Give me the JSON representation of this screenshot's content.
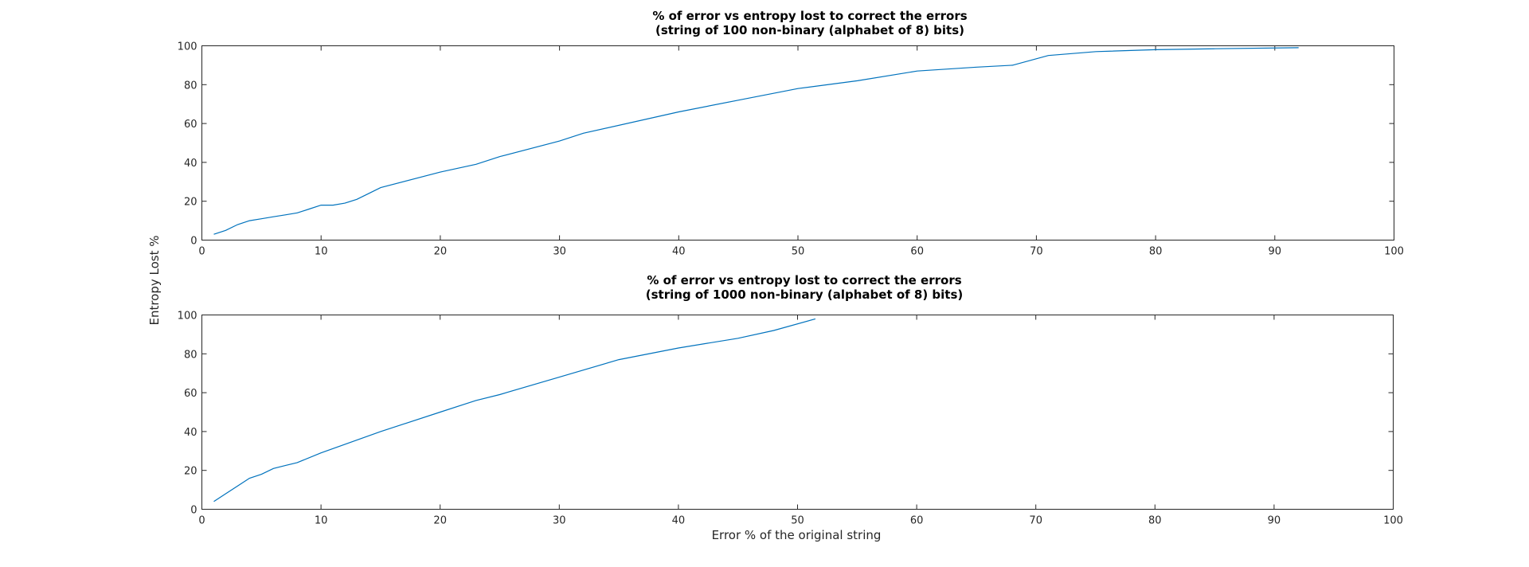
{
  "chart_data": [
    {
      "type": "line",
      "title_line1": "% of error vs entropy lost to correct the errors",
      "title_line2": "(string of 100 non-binary (alphabet of 8) bits)",
      "xlabel": "",
      "ylabel": "Entropy Lost %",
      "xlim": [
        0,
        100
      ],
      "ylim": [
        0,
        100
      ],
      "xticks": [
        0,
        10,
        20,
        30,
        40,
        50,
        60,
        70,
        80,
        90,
        100
      ],
      "yticks": [
        0,
        20,
        40,
        60,
        80,
        100
      ],
      "grid": false,
      "line_color": "#0072bd",
      "series": [
        {
          "x": [
            1,
            2,
            3,
            4,
            5,
            6,
            7,
            8,
            9,
            10,
            11,
            12,
            13,
            14,
            15,
            20,
            23,
            25,
            30,
            32,
            40,
            45,
            50,
            55,
            60,
            65,
            68,
            71,
            75,
            80,
            85,
            92
          ],
          "y": [
            3,
            5,
            8,
            10,
            11,
            12,
            13,
            14,
            16,
            18,
            18,
            19,
            21,
            24,
            27,
            35,
            39,
            43,
            51,
            55,
            66,
            72,
            78,
            82,
            87,
            89,
            90,
            95,
            97,
            98,
            98.5,
            99
          ]
        }
      ]
    },
    {
      "type": "line",
      "title_line1": "% of error vs entropy lost to correct the errors",
      "title_line2": "(string of 1000 non-binary (alphabet of 8) bits)",
      "xlabel": "Error % of the original string",
      "ylabel": "",
      "xlim": [
        0,
        100
      ],
      "ylim": [
        0,
        100
      ],
      "xticks": [
        0,
        10,
        20,
        30,
        40,
        50,
        60,
        70,
        80,
        90,
        100
      ],
      "yticks": [
        0,
        20,
        40,
        60,
        80,
        100
      ],
      "grid": false,
      "line_color": "#0072bd",
      "series": [
        {
          "x": [
            1,
            2,
            3,
            4,
            5,
            6,
            7,
            8,
            10,
            15,
            20,
            23,
            25,
            30,
            35,
            40,
            45,
            48,
            51.5
          ],
          "y": [
            4,
            8,
            12,
            16,
            18,
            21,
            22.5,
            24,
            29,
            40,
            50,
            56,
            59,
            68,
            77,
            83,
            88,
            92,
            98
          ]
        }
      ]
    }
  ]
}
